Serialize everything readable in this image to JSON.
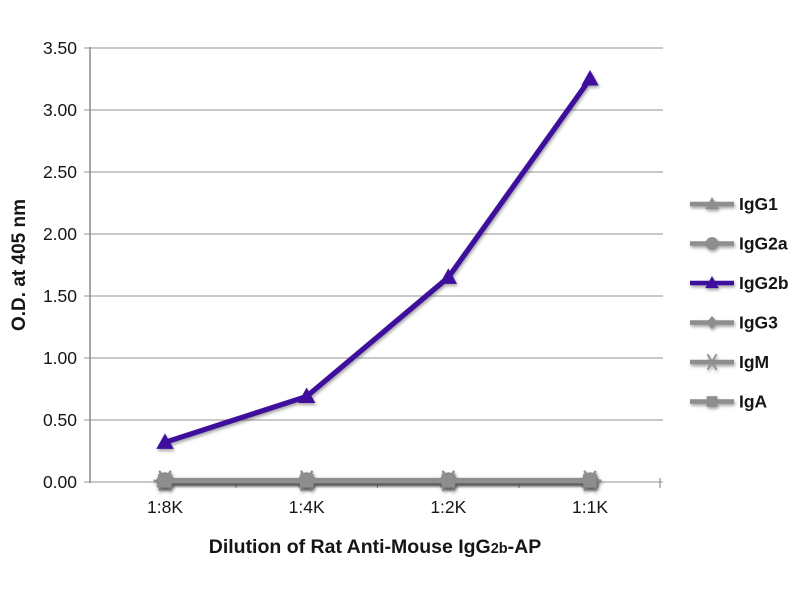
{
  "figure": {
    "background": "#ffffff",
    "grid_color": "#a9a9a9",
    "axis_color": "#8f8f8f",
    "text_color": "#161616",
    "gray_series_color": "#8e8e8e",
    "accent_color": "#3e0f9d"
  },
  "chart_data": {
    "type": "line",
    "title": "",
    "xlabel": "Dilution of Rat Anti-Mouse IgG2b-AP",
    "xlabel_parts": [
      {
        "text": "Dilution of Rat Anti-Mouse IgG",
        "small": false
      },
      {
        "text": "2b",
        "small": true
      },
      {
        "text": "-AP",
        "small": false
      }
    ],
    "ylabel": "O.D. at 405 nm",
    "categories": [
      "1:8K",
      "1:4K",
      "1:2K",
      "1:1K"
    ],
    "ylim": [
      0,
      3.5
    ],
    "ytick_values": [
      0,
      0.5,
      1,
      1.5,
      2,
      2.5,
      3,
      3.5
    ],
    "ytick_labels": [
      "0.00",
      "0.50",
      "1.00",
      "1.50",
      "2.00",
      "2.50",
      "3.00",
      "3.50"
    ],
    "grid": true,
    "legend_position": "right",
    "series": [
      {
        "name": "IgG1",
        "marker": "triangle",
        "color": "#8e8e8e",
        "values": [
          0.01,
          0.01,
          0.01,
          0.01
        ]
      },
      {
        "name": "IgG2a",
        "marker": "circle",
        "color": "#8e8e8e",
        "values": [
          0.01,
          0.01,
          0.01,
          0.01
        ]
      },
      {
        "name": "IgG2b",
        "marker": "triangle",
        "color": "#3e0f9d",
        "values": [
          0.32,
          0.69,
          1.65,
          3.25
        ]
      },
      {
        "name": "IgG3",
        "marker": "diamond",
        "color": "#8e8e8e",
        "values": [
          0.01,
          0.01,
          0.01,
          0.01
        ]
      },
      {
        "name": "IgM",
        "marker": "asterisk",
        "color": "#8e8e8e",
        "values": [
          0.01,
          0.01,
          0.01,
          0.01
        ]
      },
      {
        "name": "IgA",
        "marker": "square",
        "color": "#8e8e8e",
        "values": [
          0.01,
          0.01,
          0.01,
          0.01
        ]
      }
    ]
  }
}
